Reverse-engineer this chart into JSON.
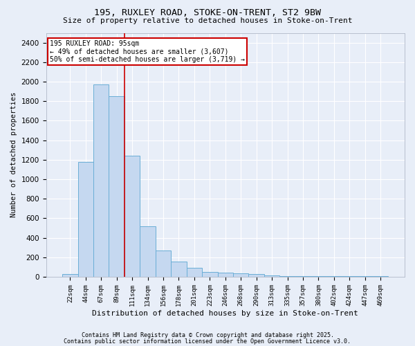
{
  "title1": "195, RUXLEY ROAD, STOKE-ON-TRENT, ST2 9BW",
  "title2": "Size of property relative to detached houses in Stoke-on-Trent",
  "xlabel": "Distribution of detached houses by size in Stoke-on-Trent",
  "ylabel": "Number of detached properties",
  "categories": [
    "22sqm",
    "44sqm",
    "67sqm",
    "89sqm",
    "111sqm",
    "134sqm",
    "156sqm",
    "178sqm",
    "201sqm",
    "223sqm",
    "246sqm",
    "268sqm",
    "290sqm",
    "313sqm",
    "335sqm",
    "357sqm",
    "380sqm",
    "402sqm",
    "424sqm",
    "447sqm",
    "469sqm"
  ],
  "values": [
    30,
    1175,
    1975,
    1850,
    1240,
    515,
    270,
    155,
    90,
    50,
    40,
    35,
    25,
    15,
    5,
    5,
    5,
    5,
    5,
    5,
    5
  ],
  "bar_color": "#c5d8f0",
  "bar_edge_color": "#6aaed6",
  "vline_color": "#cc0000",
  "box_edge_color": "#cc0000",
  "background_color": "#e8eef8",
  "grid_color": "#ffffff",
  "annotation_line1": "195 RUXLEY ROAD: 95sqm",
  "annotation_line2": "← 49% of detached houses are smaller (3,607)",
  "annotation_line3": "50% of semi-detached houses are larger (3,719) →",
  "footer1": "Contains HM Land Registry data © Crown copyright and database right 2025.",
  "footer2": "Contains public sector information licensed under the Open Government Licence v3.0.",
  "ylim": [
    0,
    2500
  ],
  "yticks": [
    0,
    200,
    400,
    600,
    800,
    1000,
    1200,
    1400,
    1600,
    1800,
    2000,
    2200,
    2400
  ],
  "vline_index": 3
}
